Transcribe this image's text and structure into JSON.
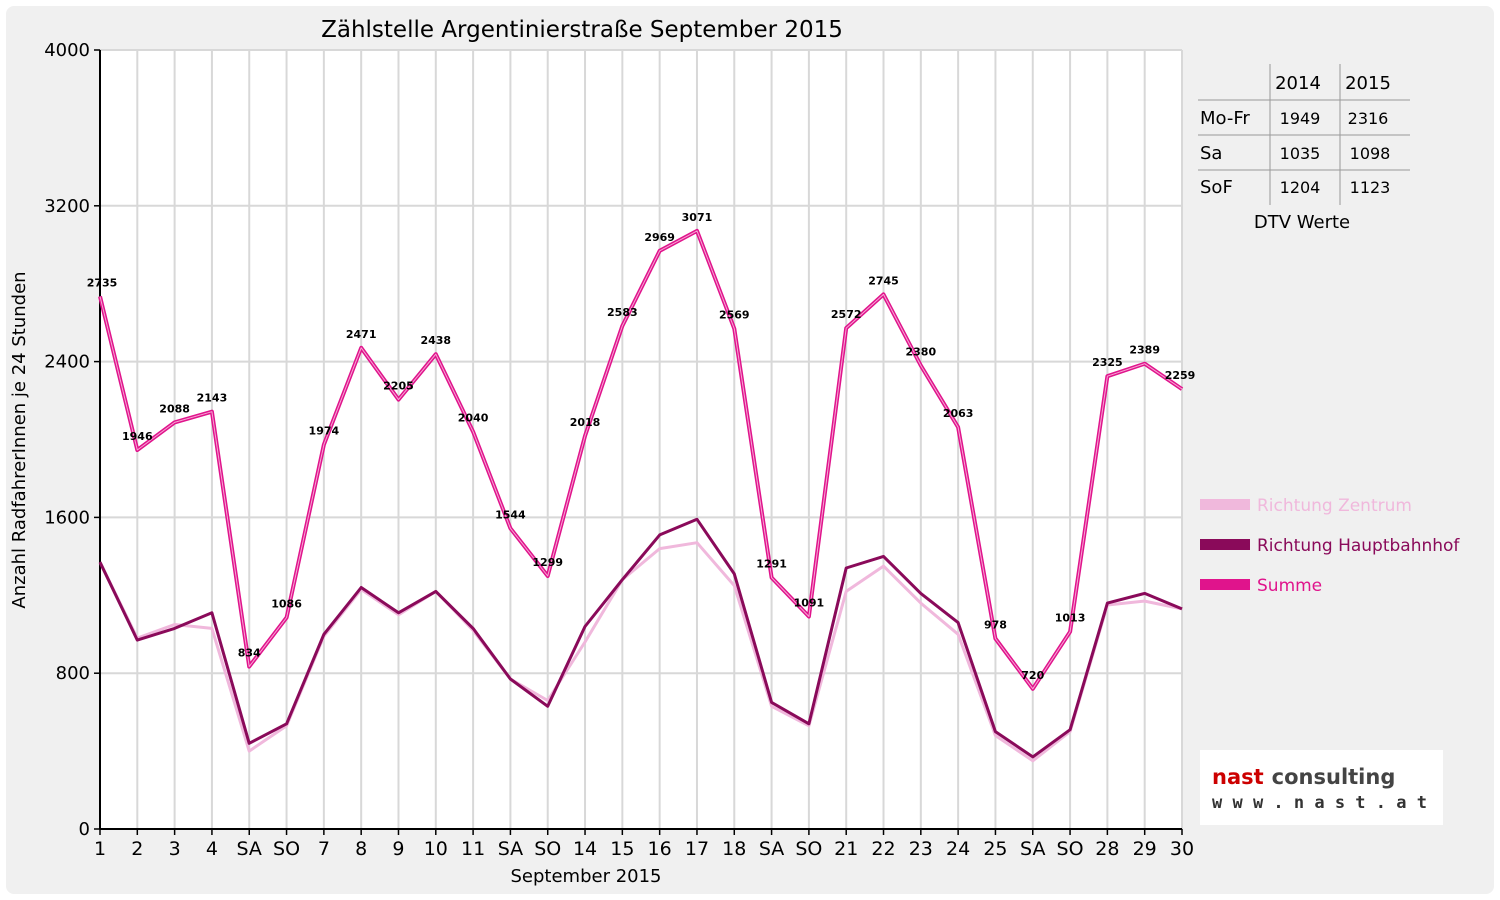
{
  "chart_data": {
    "type": "line",
    "title": "Zählstelle Argentinierstraße September 2015",
    "xlabel": "September 2015",
    "ylabel": "Anzahl RadfahrerInnen je 24 Stunden",
    "ylim": [
      0,
      4000
    ],
    "yticks": [
      "0",
      "800",
      "1600",
      "2400",
      "3200",
      "4000"
    ],
    "grid": true,
    "legend_position": "right",
    "categories": [
      "1",
      "2",
      "3",
      "4",
      "SA",
      "SO",
      "7",
      "8",
      "9",
      "10",
      "11",
      "SA",
      "SO",
      "14",
      "15",
      "16",
      "17",
      "18",
      "SA",
      "SO",
      "21",
      "22",
      "23",
      "24",
      "25",
      "SA",
      "SO",
      "28",
      "29",
      "30"
    ],
    "weekend_sunday_color": "#ff0000",
    "series": [
      {
        "name": "Richtung Zentrum",
        "color": "#f0b8dc",
        "values": [
          1370,
          980,
          1050,
          1030,
          400,
          530,
          990,
          1230,
          1100,
          1220,
          1020,
          770,
          660,
          960,
          1280,
          1440,
          1470,
          1250,
          630,
          530,
          1220,
          1350,
          1160,
          1000,
          480,
          350,
          500,
          1150,
          1170,
          1130
        ]
      },
      {
        "name": "Richtung Hauptbahnhof",
        "color": "#8a0a5a",
        "values": [
          1370,
          970,
          1030,
          1110,
          440,
          540,
          1000,
          1240,
          1110,
          1220,
          1030,
          770,
          630,
          1040,
          1280,
          1510,
          1590,
          1310,
          650,
          540,
          1340,
          1400,
          1210,
          1060,
          500,
          370,
          510,
          1160,
          1210,
          1130
        ]
      },
      {
        "name": "Summe",
        "color": "#e0148c",
        "values": [
          2735,
          1946,
          2088,
          2143,
          834,
          1086,
          1974,
          2471,
          2205,
          2438,
          2040,
          1544,
          1299,
          2018,
          2583,
          2969,
          3071,
          2569,
          1291,
          1091,
          2572,
          2745,
          2380,
          2063,
          978,
          720,
          1013,
          2325,
          2389,
          2259
        ]
      }
    ],
    "data_labels": [
      "2735",
      "1946",
      "2088",
      "2143",
      "834",
      "1086",
      "1974",
      "2471",
      "2205",
      "2438",
      "2040",
      "1544",
      "1299",
      "2018",
      "2583",
      "2969",
      "3071",
      "2569",
      "1291",
      "1091",
      "2572",
      "2745",
      "2380",
      "2063",
      "978",
      "720",
      "1013",
      "2325",
      "2389",
      "2259"
    ]
  },
  "dtv_table": {
    "caption": "DTV Werte",
    "columns": [
      "",
      "2014",
      "2015"
    ],
    "rows": [
      {
        "label": "Mo-Fr",
        "v2014": "1949",
        "v2015": "2316"
      },
      {
        "label": "Sa",
        "v2014": "1035",
        "v2015": "1098"
      },
      {
        "label": "SoF",
        "v2014": "1204",
        "v2015": "1123"
      }
    ]
  },
  "logo": {
    "name_part1": "nast",
    "name_part2": "consulting",
    "url": "w w w . n a s t . a t",
    "color1": "#cc0000",
    "color2": "#444444"
  }
}
